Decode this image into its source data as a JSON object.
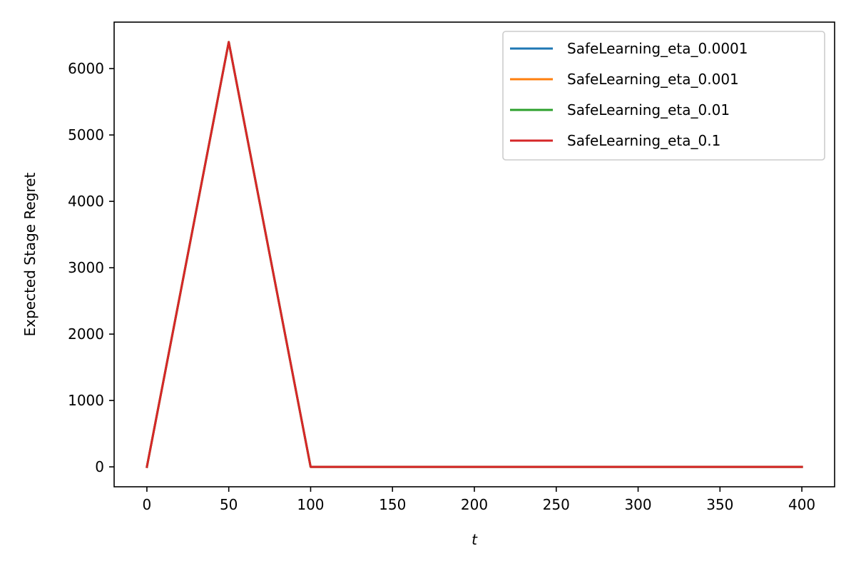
{
  "chart_data": {
    "type": "line",
    "title": "",
    "xlabel": "t",
    "ylabel": "Expected Stage Regret",
    "xlim": [
      -20,
      420
    ],
    "ylim": [
      -300,
      6700
    ],
    "xticks": [
      0,
      50,
      100,
      150,
      200,
      250,
      300,
      350,
      400
    ],
    "yticks": [
      0,
      1000,
      2000,
      3000,
      4000,
      5000,
      6000
    ],
    "grid": false,
    "legend_position": "top-right",
    "x": [
      0,
      50,
      100,
      400
    ],
    "series": [
      {
        "name": "SafeLearning_eta_0.0001",
        "color": "#1f77b4",
        "values": [
          0,
          6400,
          0,
          0
        ]
      },
      {
        "name": "SafeLearning_eta_0.001",
        "color": "#ff7f0e",
        "values": [
          0,
          6400,
          0,
          0
        ]
      },
      {
        "name": "SafeLearning_eta_0.01",
        "color": "#2ca02c",
        "values": [
          0,
          6400,
          0,
          0
        ]
      },
      {
        "name": "SafeLearning_eta_0.1",
        "color": "#d62728",
        "values": [
          0,
          6400,
          0,
          0
        ]
      }
    ]
  }
}
